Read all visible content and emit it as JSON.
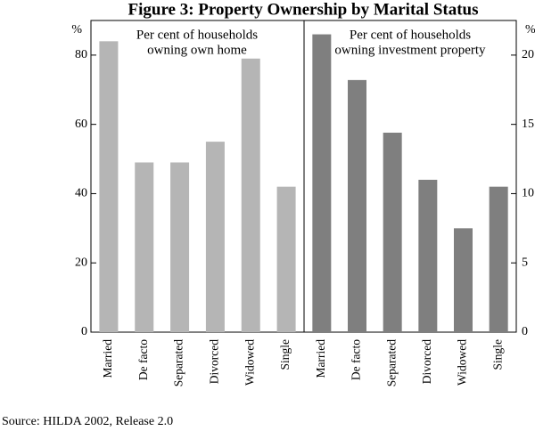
{
  "chart_data": {
    "type": "bar",
    "title": "Figure 3: Property Ownership by Marital Status",
    "source": "Source: HILDA 2002, Release 2.0",
    "panels": [
      {
        "title_line1": "Per cent of households",
        "title_line2": "owning own home",
        "unit": "%",
        "axis_side": "left",
        "ylim": [
          0,
          90
        ],
        "yticks": [
          0,
          20,
          40,
          60,
          80
        ],
        "categories": [
          "Married",
          "De facto",
          "Separated",
          "Divorced",
          "Widowed",
          "Single"
        ],
        "values": [
          84,
          49,
          49,
          55,
          79,
          42
        ],
        "color": "#b5b5b5"
      },
      {
        "title_line1": "Per cent of households",
        "title_line2": "owning investment property",
        "unit": "%",
        "axis_side": "right",
        "ylim": [
          0,
          22.5
        ],
        "yticks": [
          0,
          5,
          10,
          15,
          20
        ],
        "categories": [
          "Married",
          "De facto",
          "Separated",
          "Divorced",
          "Widowed",
          "Single"
        ],
        "values": [
          21.5,
          18.2,
          14.4,
          11.0,
          7.5,
          10.5
        ],
        "color": "#7f7f7f"
      }
    ]
  }
}
